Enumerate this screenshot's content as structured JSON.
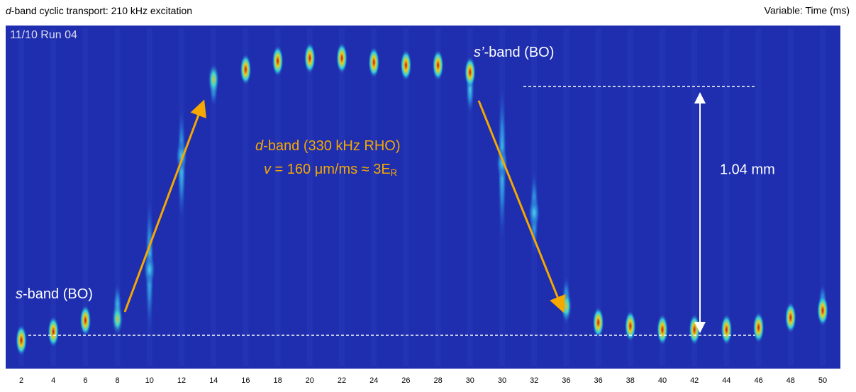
{
  "header": {
    "title_italic": "d",
    "title_rest": "-band cyclic transport: 210 kHz excitation",
    "variable": "Variable: Time (ms)"
  },
  "image": {
    "run_label": "11/10 Run 04",
    "s_band": {
      "italic": "s",
      "rest": "-band (BO)"
    },
    "s_prime_band": {
      "italic": "s’",
      "rest": "-band (BO)"
    },
    "d_band": {
      "italic": "d",
      "rest": "-band (330 kHz RHO)"
    },
    "velocity": {
      "italic": "v",
      "rest": " = 160 μm/ms ≈ 3E",
      "subscript": "R"
    },
    "distance": "1.04 mm",
    "frame_labels": [
      "2",
      "4",
      "6",
      "8",
      "10",
      "12",
      "14",
      "16",
      "18",
      "20",
      "22",
      "24",
      "26",
      "28",
      "30",
      "30",
      "32",
      "36",
      "36",
      "38",
      "40",
      "42",
      "44",
      "46",
      "48",
      "50"
    ]
  }
}
